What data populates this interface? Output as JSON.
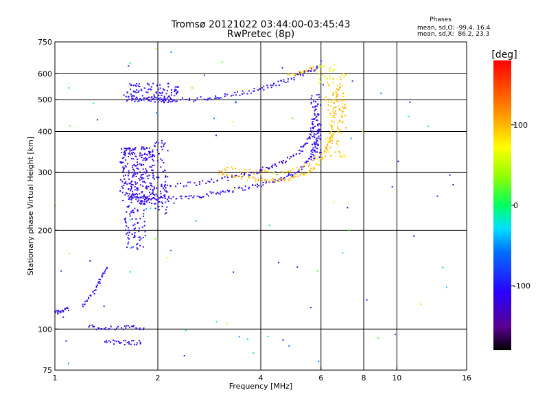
{
  "chart_data": {
    "type": "scatter",
    "title": "Tromsø 20121022 03:44:00-03:45:43",
    "subtitle": "RwPretec (8p)",
    "xlabel": "Frequency [MHz]",
    "ylabel": "Stationary phase Virtual Height [km]",
    "x_scale": "log",
    "y_scale": "log",
    "xlim": [
      1,
      16
    ],
    "ylim": [
      75,
      750
    ],
    "x_ticks": [
      1,
      2,
      4,
      6,
      8,
      10,
      16
    ],
    "x_tick_labels": [
      "1",
      "2",
      "4",
      "6",
      "8",
      "10",
      "16"
    ],
    "y_ticks": [
      75,
      100,
      200,
      300,
      400,
      500,
      600,
      750
    ],
    "y_tick_labels": [
      "75",
      "100",
      "200",
      "300",
      "400",
      "500",
      "600",
      "750"
    ],
    "grid": true,
    "stats": {
      "heading": "Phases",
      "line_o": "mean, sd,O: -99.4, 16.4",
      "line_x": "mean, sd,X:  86.2, 23.3"
    },
    "colorbar": {
      "label": "[deg]",
      "range": [
        -180,
        180
      ],
      "ticks": [
        100,
        0,
        -100
      ],
      "tick_labels": [
        "100",
        "0",
        "-100"
      ],
      "colormap": "rainbow"
    },
    "point_color_value": "phase [deg]",
    "traces": [
      {
        "points": [
          [
            1.6,
            258
          ],
          [
            1.7,
            254
          ],
          [
            1.8,
            252
          ],
          [
            1.9,
            250
          ],
          [
            2.0,
            250
          ],
          [
            2.2,
            250
          ],
          [
            2.4,
            252
          ],
          [
            2.6,
            254
          ],
          [
            2.8,
            257
          ],
          [
            3.0,
            261
          ],
          [
            3.2,
            264
          ],
          [
            3.5,
            268
          ],
          [
            3.8,
            272
          ],
          [
            4.1,
            277
          ],
          [
            4.4,
            283
          ],
          [
            4.7,
            290
          ],
          [
            5.0,
            298
          ],
          [
            5.3,
            310
          ],
          [
            5.5,
            325
          ],
          [
            5.7,
            345
          ],
          [
            5.8,
            370
          ],
          [
            5.9,
            400
          ],
          [
            5.95,
            430
          ]
        ],
        "phase": -110
      },
      {
        "points": [
          [
            1.6,
            275
          ],
          [
            1.8,
            272
          ],
          [
            2.0,
            272
          ],
          [
            2.2,
            274
          ],
          [
            2.5,
            277
          ],
          [
            2.8,
            281
          ],
          [
            3.1,
            286
          ],
          [
            3.4,
            292
          ],
          [
            3.7,
            298
          ],
          [
            4.0,
            305
          ],
          [
            4.3,
            313
          ],
          [
            4.6,
            322
          ],
          [
            4.9,
            333
          ],
          [
            5.2,
            348
          ],
          [
            5.4,
            365
          ],
          [
            5.6,
            390
          ],
          [
            5.7,
            420
          ],
          [
            5.8,
            460
          ],
          [
            5.85,
            500
          ]
        ],
        "phase": -120
      },
      {
        "points": [
          [
            3.0,
            300
          ],
          [
            3.2,
            295
          ],
          [
            3.5,
            290
          ],
          [
            3.8,
            286
          ],
          [
            4.1,
            284
          ],
          [
            4.4,
            284
          ],
          [
            4.7,
            286
          ],
          [
            5.0,
            290
          ],
          [
            5.3,
            296
          ],
          [
            5.6,
            305
          ],
          [
            5.9,
            318
          ],
          [
            6.1,
            335
          ],
          [
            6.3,
            360
          ],
          [
            6.4,
            390
          ],
          [
            6.5,
            430
          ],
          [
            6.6,
            480
          ],
          [
            6.7,
            530
          ],
          [
            6.8,
            560
          ]
        ],
        "phase": 100
      },
      {
        "points": [
          [
            3.1,
            310
          ],
          [
            3.5,
            305
          ],
          [
            4.0,
            300
          ],
          [
            4.5,
            300
          ],
          [
            5.0,
            305
          ],
          [
            5.5,
            318
          ],
          [
            6.0,
            340
          ],
          [
            6.4,
            370
          ],
          [
            6.7,
            410
          ],
          [
            6.9,
            450
          ],
          [
            7.0,
            480
          ]
        ],
        "phase": 95
      },
      {
        "points": [
          [
            1.6,
            510
          ],
          [
            1.8,
            502
          ],
          [
            2.0,
            500
          ],
          [
            2.2,
            500
          ],
          [
            2.5,
            500
          ],
          [
            2.8,
            505
          ],
          [
            3.0,
            510
          ],
          [
            3.3,
            518
          ],
          [
            3.6,
            527
          ],
          [
            3.9,
            536
          ],
          [
            4.2,
            547
          ],
          [
            4.5,
            560
          ],
          [
            4.8,
            575
          ],
          [
            5.1,
            590
          ],
          [
            5.4,
            605
          ],
          [
            5.7,
            620
          ],
          [
            5.9,
            630
          ]
        ],
        "phase": -105
      },
      {
        "points": [
          [
            4.8,
            590
          ],
          [
            5.2,
            605
          ],
          [
            5.5,
            615
          ],
          [
            5.8,
            625
          ]
        ],
        "phase": 100
      },
      {
        "points": [
          [
            1.0,
            112
          ],
          [
            1.03,
            113
          ],
          [
            1.06,
            114
          ],
          [
            1.1,
            116
          ]
        ],
        "phase": -110
      },
      {
        "points": [
          [
            1.2,
            118
          ],
          [
            1.25,
            124
          ],
          [
            1.3,
            130
          ],
          [
            1.35,
            138
          ],
          [
            1.38,
            146
          ],
          [
            1.42,
            155
          ]
        ],
        "phase": -110
      },
      {
        "points": [
          [
            1.25,
            102
          ],
          [
            1.35,
            101
          ],
          [
            1.45,
            101
          ],
          [
            1.6,
            101
          ],
          [
            1.7,
            101
          ],
          [
            1.85,
            101
          ]
        ],
        "phase": -115
      },
      {
        "points": [
          [
            1.4,
            92
          ],
          [
            1.5,
            91
          ],
          [
            1.6,
            91
          ],
          [
            1.7,
            91
          ],
          [
            1.8,
            91
          ]
        ],
        "phase": -110
      }
    ],
    "clusters": [
      {
        "fmin": 1.55,
        "fmax": 1.95,
        "hmin": 240,
        "hmax": 360,
        "n": 260,
        "phase": -115
      },
      {
        "fmin": 1.95,
        "fmax": 2.15,
        "hmin": 220,
        "hmax": 380,
        "n": 70,
        "phase": -110
      },
      {
        "fmin": 1.6,
        "fmax": 1.85,
        "hmin": 175,
        "hmax": 240,
        "n": 70,
        "phase": -110
      },
      {
        "fmin": 1.6,
        "fmax": 2.3,
        "hmin": 490,
        "hmax": 560,
        "n": 120,
        "phase": -110
      },
      {
        "fmin": 5.6,
        "fmax": 6.0,
        "hmin": 330,
        "hmax": 520,
        "n": 70,
        "phase": -105
      },
      {
        "fmin": 6.2,
        "fmax": 7.1,
        "hmin": 330,
        "hmax": 620,
        "n": 90,
        "phase": 90
      },
      {
        "fmin": 5.9,
        "fmax": 6.6,
        "hmin": 560,
        "hmax": 640,
        "n": 25,
        "phase": 70
      },
      {
        "fmin": 1.0,
        "fmax": 16.0,
        "hmin": 78,
        "hmax": 740,
        "n": 85,
        "phase": -40
      }
    ]
  }
}
